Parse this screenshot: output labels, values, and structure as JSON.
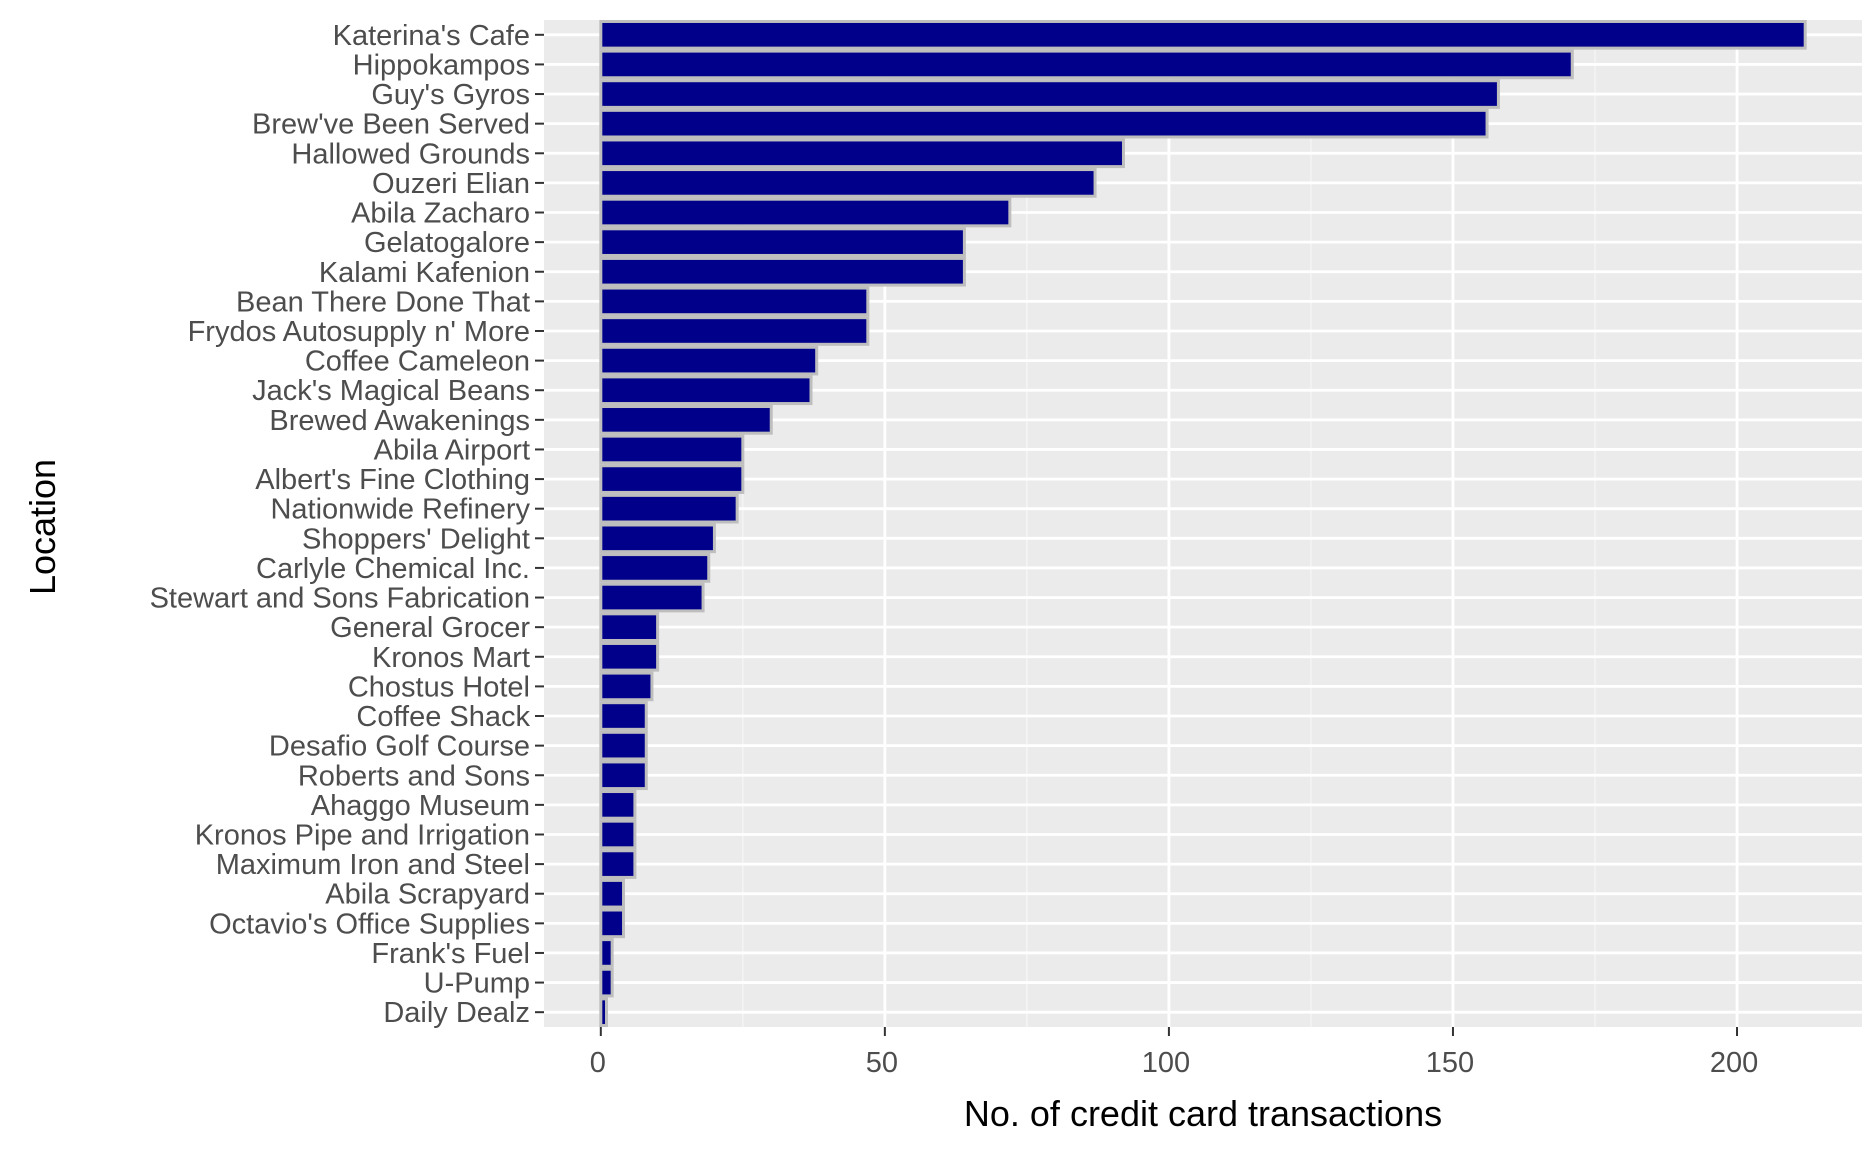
{
  "chart_data": {
    "type": "bar",
    "orientation": "horizontal",
    "title": "",
    "xlabel": "No. of credit card transactions",
    "ylabel": "Location",
    "xlim": [
      -10,
      222
    ],
    "xticks": [
      0,
      50,
      100,
      150,
      200
    ],
    "grid": true,
    "legend": "none",
    "categories": [
      "Katerina's Cafe",
      "Hippokampos",
      "Guy's Gyros",
      "Brew've Been Served",
      "Hallowed Grounds",
      "Ouzeri Elian",
      "Abila Zacharo",
      "Gelatogalore",
      "Kalami Kafenion",
      "Bean There Done That",
      "Frydos Autosupply n' More",
      "Coffee Cameleon",
      "Jack's Magical Beans",
      "Brewed Awakenings",
      "Abila Airport",
      "Albert's Fine Clothing",
      "Nationwide Refinery",
      "Shoppers' Delight",
      "Carlyle Chemical Inc.",
      "Stewart and Sons Fabrication",
      "General Grocer",
      "Kronos Mart",
      "Chostus Hotel",
      "Coffee Shack",
      "Desafio Golf Course",
      "Roberts and Sons",
      "Ahaggo Museum",
      "Kronos Pipe and Irrigation",
      "Maximum Iron and Steel",
      "Abila Scrapyard",
      "Octavio's Office Supplies",
      "Frank's Fuel",
      "U-Pump",
      "Daily Dealz"
    ],
    "values": [
      212,
      171,
      158,
      156,
      92,
      87,
      72,
      64,
      64,
      47,
      47,
      38,
      37,
      30,
      25,
      25,
      24,
      20,
      19,
      18,
      10,
      10,
      9,
      8,
      8,
      8,
      6,
      6,
      6,
      4,
      4,
      2,
      2,
      1
    ]
  },
  "colors": {
    "bar_fill": "#00008b",
    "bar_outline": "#bebebe",
    "panel_background": "#ebebeb",
    "grid_major": "#ffffff",
    "grid_minor": "#f5f5f5",
    "tick_text": "#4d4d4d",
    "axis_title": "#000000"
  }
}
